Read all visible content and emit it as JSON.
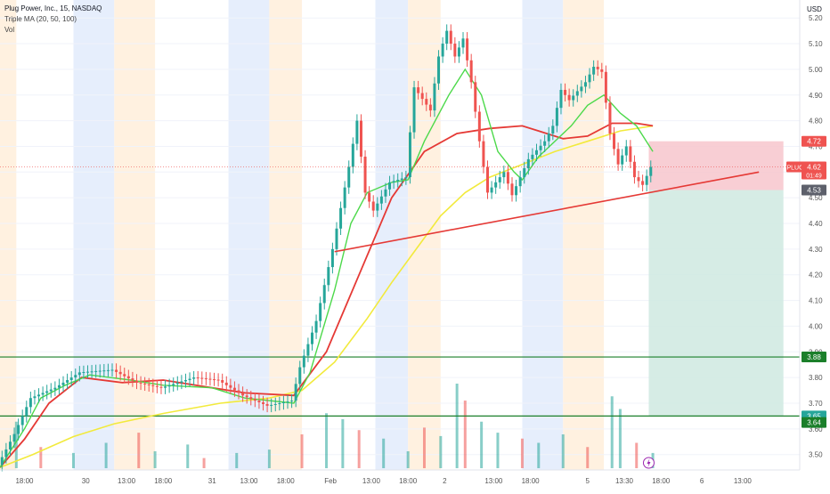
{
  "header": {
    "symbol_line": "Plug Power, Inc., 15, NASDAQ",
    "indicator_ma": "Triple MA (20, 50, 100)",
    "indicator_vol": "Vol"
  },
  "axis": {
    "currency": "USD"
  },
  "badges": {
    "ticker": "PLUG",
    "last_price": "4.62",
    "countdown": "01:49",
    "stop_price": "4.72",
    "entry_price": "4.53",
    "level_upper": "3.88",
    "target_price": "3.65",
    "level_lower": "3.64"
  },
  "colors": {
    "up": "#26a69a",
    "down": "#ef5350",
    "ma20": "#4cd94a",
    "ma50": "#e53935",
    "ma100": "#f2ea3c",
    "trendline": "#e53935",
    "level_line": "#1b7f2a",
    "stop_zone": "#f7c6cc",
    "target_zone": "#cfe9e1",
    "session_pre": "#fff1e0",
    "session_post": "#e6eefc"
  },
  "icons": {
    "alert": "lightning-icon"
  },
  "chart_data": {
    "type": "candlestick",
    "title": "Plug Power, Inc., 15, NASDAQ",
    "ylim": [
      3.44,
      5.27
    ],
    "y_ticks": [
      3.5,
      3.6,
      3.7,
      3.8,
      3.9,
      4.0,
      4.1,
      4.2,
      4.3,
      4.4,
      4.5,
      4.6,
      4.7,
      4.8,
      4.9,
      5.0,
      5.1,
      5.2
    ],
    "x_ticks": [
      "18:00",
      "30",
      "13:00",
      "18:00",
      "31",
      "13:00",
      "18:00",
      "Feb",
      "13:00",
      "18:00",
      "2",
      "13:00",
      "18:00",
      "5",
      "13:30",
      "18:00",
      "6",
      "13:00"
    ],
    "price_path": [
      {
        "t": 0,
        "v": 3.46
      },
      {
        "t": 2,
        "v": 3.58
      },
      {
        "t": 4,
        "v": 3.72
      },
      {
        "t": 7,
        "v": 3.76
      },
      {
        "t": 10,
        "v": 3.82
      },
      {
        "t": 14,
        "v": 3.83
      },
      {
        "t": 17,
        "v": 3.78
      },
      {
        "t": 20,
        "v": 3.76
      },
      {
        "t": 24,
        "v": 3.8
      },
      {
        "t": 27,
        "v": 3.79
      },
      {
        "t": 30,
        "v": 3.73
      },
      {
        "t": 33,
        "v": 3.69
      },
      {
        "t": 36,
        "v": 3.71
      },
      {
        "t": 37,
        "v": 3.84
      },
      {
        "t": 39,
        "v": 4.02
      },
      {
        "t": 41,
        "v": 4.3
      },
      {
        "t": 43,
        "v": 4.62
      },
      {
        "t": 44,
        "v": 4.8
      },
      {
        "t": 45,
        "v": 4.52
      },
      {
        "t": 46,
        "v": 4.45
      },
      {
        "t": 48,
        "v": 4.56
      },
      {
        "t": 50,
        "v": 4.58
      },
      {
        "t": 51,
        "v": 4.93
      },
      {
        "t": 53,
        "v": 4.84
      },
      {
        "t": 54,
        "v": 5.05
      },
      {
        "t": 55,
        "v": 5.15
      },
      {
        "t": 56,
        "v": 5.05
      },
      {
        "t": 57,
        "v": 5.12
      },
      {
        "t": 58,
        "v": 4.95
      },
      {
        "t": 59,
        "v": 4.72
      },
      {
        "t": 60,
        "v": 4.52
      },
      {
        "t": 62,
        "v": 4.6
      },
      {
        "t": 63,
        "v": 4.51
      },
      {
        "t": 64,
        "v": 4.58
      },
      {
        "t": 65,
        "v": 4.65
      },
      {
        "t": 67,
        "v": 4.72
      },
      {
        "t": 68,
        "v": 4.78
      },
      {
        "t": 69,
        "v": 4.92
      },
      {
        "t": 70,
        "v": 4.88
      },
      {
        "t": 72,
        "v": 4.95
      },
      {
        "t": 73,
        "v": 5.01
      },
      {
        "t": 74,
        "v": 4.99
      },
      {
        "t": 75,
        "v": 4.75
      },
      {
        "t": 76,
        "v": 4.63
      },
      {
        "t": 77,
        "v": 4.7
      },
      {
        "t": 78,
        "v": 4.58
      },
      {
        "t": 79,
        "v": 4.55
      },
      {
        "t": 80,
        "v": 4.62
      }
    ],
    "ma_20": [
      {
        "t": 0,
        "v": 3.45
      },
      {
        "t": 3,
        "v": 3.6
      },
      {
        "t": 5,
        "v": 3.72
      },
      {
        "t": 8,
        "v": 3.77
      },
      {
        "t": 11,
        "v": 3.81
      },
      {
        "t": 16,
        "v": 3.79
      },
      {
        "t": 20,
        "v": 3.77
      },
      {
        "t": 26,
        "v": 3.76
      },
      {
        "t": 30,
        "v": 3.72
      },
      {
        "t": 36,
        "v": 3.7
      },
      {
        "t": 38,
        "v": 3.82
      },
      {
        "t": 41,
        "v": 4.14
      },
      {
        "t": 43,
        "v": 4.4
      },
      {
        "t": 45,
        "v": 4.52
      },
      {
        "t": 48,
        "v": 4.56
      },
      {
        "t": 50,
        "v": 4.57
      },
      {
        "t": 52,
        "v": 4.72
      },
      {
        "t": 55,
        "v": 4.9
      },
      {
        "t": 57,
        "v": 5.0
      },
      {
        "t": 59,
        "v": 4.9
      },
      {
        "t": 61,
        "v": 4.68
      },
      {
        "t": 63,
        "v": 4.6
      },
      {
        "t": 64,
        "v": 4.57
      },
      {
        "t": 66,
        "v": 4.66
      },
      {
        "t": 68,
        "v": 4.72
      },
      {
        "t": 70,
        "v": 4.78
      },
      {
        "t": 72,
        "v": 4.86
      },
      {
        "t": 74,
        "v": 4.9
      },
      {
        "t": 76,
        "v": 4.83
      },
      {
        "t": 78,
        "v": 4.78
      },
      {
        "t": 80,
        "v": 4.68
      }
    ],
    "ma_50": [
      {
        "t": 0,
        "v": 3.45
      },
      {
        "t": 3,
        "v": 3.56
      },
      {
        "t": 6,
        "v": 3.7
      },
      {
        "t": 10,
        "v": 3.8
      },
      {
        "t": 15,
        "v": 3.78
      },
      {
        "t": 20,
        "v": 3.79
      },
      {
        "t": 26,
        "v": 3.76
      },
      {
        "t": 30,
        "v": 3.74
      },
      {
        "t": 36,
        "v": 3.73
      },
      {
        "t": 40,
        "v": 3.9
      },
      {
        "t": 44,
        "v": 4.2
      },
      {
        "t": 48,
        "v": 4.5
      },
      {
        "t": 52,
        "v": 4.68
      },
      {
        "t": 56,
        "v": 4.75
      },
      {
        "t": 60,
        "v": 4.77
      },
      {
        "t": 64,
        "v": 4.78
      },
      {
        "t": 66,
        "v": 4.76
      },
      {
        "t": 69,
        "v": 4.73
      },
      {
        "t": 72,
        "v": 4.74
      },
      {
        "t": 75,
        "v": 4.79
      },
      {
        "t": 78,
        "v": 4.79
      },
      {
        "t": 80,
        "v": 4.78
      }
    ],
    "ma_100": [
      {
        "t": 0,
        "v": 3.45
      },
      {
        "t": 4,
        "v": 3.5
      },
      {
        "t": 9,
        "v": 3.57
      },
      {
        "t": 14,
        "v": 3.62
      },
      {
        "t": 20,
        "v": 3.66
      },
      {
        "t": 27,
        "v": 3.7
      },
      {
        "t": 33,
        "v": 3.72
      },
      {
        "t": 37,
        "v": 3.75
      },
      {
        "t": 41,
        "v": 3.86
      },
      {
        "t": 45,
        "v": 4.03
      },
      {
        "t": 48,
        "v": 4.17
      },
      {
        "t": 51,
        "v": 4.3
      },
      {
        "t": 54,
        "v": 4.43
      },
      {
        "t": 57,
        "v": 4.52
      },
      {
        "t": 60,
        "v": 4.58
      },
      {
        "t": 64,
        "v": 4.63
      },
      {
        "t": 68,
        "v": 4.68
      },
      {
        "t": 72,
        "v": 4.72
      },
      {
        "t": 76,
        "v": 4.76
      },
      {
        "t": 80,
        "v": 4.78
      }
    ],
    "volume": [
      {
        "t": 2,
        "v": 0.55
      },
      {
        "t": 5,
        "v": 0.25
      },
      {
        "t": 9,
        "v": 0.18
      },
      {
        "t": 13,
        "v": 0.3
      },
      {
        "t": 17,
        "v": 0.42
      },
      {
        "t": 19,
        "v": 0.2
      },
      {
        "t": 23,
        "v": 0.28
      },
      {
        "t": 25,
        "v": 0.12
      },
      {
        "t": 29,
        "v": 0.18
      },
      {
        "t": 33,
        "v": 0.22
      },
      {
        "t": 37,
        "v": 0.4
      },
      {
        "t": 40,
        "v": 0.65
      },
      {
        "t": 42,
        "v": 0.58
      },
      {
        "t": 44,
        "v": 0.45
      },
      {
        "t": 47,
        "v": 0.35
      },
      {
        "t": 50,
        "v": 0.2
      },
      {
        "t": 52,
        "v": 0.48
      },
      {
        "t": 54,
        "v": 0.38
      },
      {
        "t": 56,
        "v": 1.0
      },
      {
        "t": 57,
        "v": 0.8
      },
      {
        "t": 59,
        "v": 0.55
      },
      {
        "t": 61,
        "v": 0.42
      },
      {
        "t": 64,
        "v": 0.35
      },
      {
        "t": 66,
        "v": 0.3
      },
      {
        "t": 69,
        "v": 0.4
      },
      {
        "t": 72,
        "v": 0.25
      },
      {
        "t": 75,
        "v": 0.85
      },
      {
        "t": 76,
        "v": 0.7
      },
      {
        "t": 78,
        "v": 0.3
      },
      {
        "t": 80,
        "v": 0.18
      }
    ],
    "trendline": {
      "from": {
        "t": 41,
        "v": 4.29
      },
      "to": {
        "t": 93,
        "v": 4.6
      }
    },
    "horizontal_levels": [
      3.88,
      3.65
    ],
    "position": {
      "entry": 4.53,
      "stop": 4.72,
      "target": 3.65
    }
  }
}
